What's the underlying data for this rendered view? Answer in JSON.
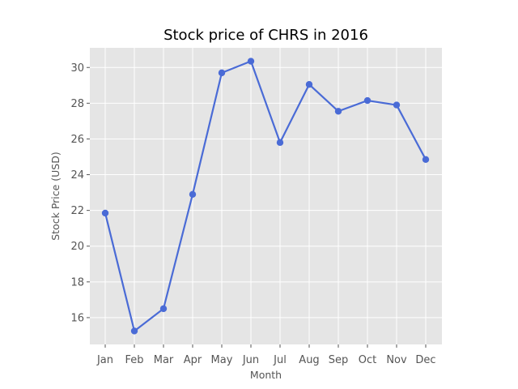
{
  "chart_data": {
    "type": "line",
    "title": "Stock price of CHRS in 2016",
    "xlabel": "Month",
    "ylabel": "Stock Price (USD)",
    "categories": [
      "Jan",
      "Feb",
      "Mar",
      "Apr",
      "May",
      "Jun",
      "Jul",
      "Aug",
      "Sep",
      "Oct",
      "Nov",
      "Dec"
    ],
    "series": [
      {
        "values": [
          21.85,
          15.25,
          16.5,
          22.9,
          29.7,
          30.35,
          25.8,
          29.05,
          27.55,
          28.15,
          27.9,
          24.85
        ]
      }
    ],
    "yticks": [
      16,
      18,
      20,
      22,
      24,
      26,
      28,
      30
    ],
    "ylim": [
      14.5,
      31.1
    ],
    "grid": true,
    "colors": {
      "line": "#4a6bd6",
      "background": "#e5e5e5",
      "grid": "#ffffff"
    }
  }
}
